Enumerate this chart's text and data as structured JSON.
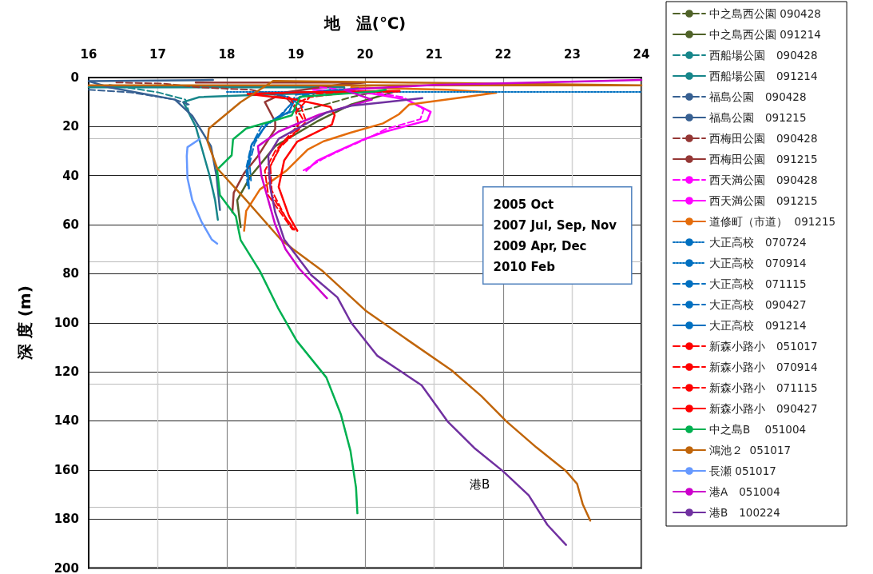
{
  "chart_data": {
    "type": "line",
    "xlabel": "地　温(℃)",
    "ylabel": "深 度 (m)",
    "xlim": [
      16,
      24
    ],
    "xticks": [
      16,
      17,
      18,
      19,
      20,
      21,
      22,
      23,
      24
    ],
    "ylim": [
      200,
      0
    ],
    "yticks": [
      0,
      20,
      40,
      60,
      80,
      100,
      120,
      140,
      160,
      180,
      200
    ],
    "grid": true,
    "legend": "right",
    "marker": "none",
    "annotations": [
      "2005 Oct\n2007 Jul, Sep, Nov\n2009 Apr, Dec\n2010 Feb",
      "港B"
    ],
    "series": [
      {
        "name": "中之島西公園 090428",
        "color": "#4f6228",
        "line_style": "dashed",
        "x": [
          20.3,
          19.8,
          19.3,
          19.0
        ],
        "values": [
          5,
          8,
          12,
          14
        ]
      },
      {
        "name": "中之島西公園 091214",
        "color": "#4f6228",
        "line_style": "solid",
        "x": [
          20.4,
          19.8,
          19.3,
          18.7,
          18.35,
          18.15,
          18.2
        ],
        "values": [
          6,
          11,
          18,
          28,
          40,
          50,
          61
        ]
      },
      {
        "name": "西船場公園　090428",
        "color": "#17868a",
        "line_style": "dashed",
        "x": [
          16.3,
          17.0,
          17.4,
          17.45
        ],
        "values": [
          3,
          6,
          9,
          14
        ]
      },
      {
        "name": "西船場公園　091214",
        "color": "#17868a",
        "line_style": "solid",
        "x": [
          16.0,
          18.5,
          19.7,
          19.7,
          18.5,
          17.6,
          17.37,
          17.55,
          17.65,
          17.75,
          17.83,
          17.87
        ],
        "values": [
          4,
          4,
          4,
          6,
          7,
          8,
          10,
          20,
          30,
          40,
          50,
          58
        ]
      },
      {
        "name": "福島公園　090428",
        "color": "#376092",
        "line_style": "dashed",
        "x": [
          16.0,
          16.6,
          17.25,
          17.45
        ],
        "values": [
          5,
          6,
          9,
          11
        ]
      },
      {
        "name": "福島公園　091215",
        "color": "#376092",
        "line_style": "solid",
        "x": [
          17.8,
          16.0,
          16.3,
          17.25,
          17.5,
          17.77,
          17.85,
          17.9
        ],
        "values": [
          1,
          1.5,
          4,
          9,
          15.6,
          28,
          40,
          54
        ]
      },
      {
        "name": "西梅田公園　090428",
        "color": "#953735",
        "line_style": "dashed",
        "x": [
          16.4,
          17.1,
          17.6,
          18.35,
          18.85,
          18.95,
          19.05
        ],
        "values": [
          2,
          2.5,
          4,
          5,
          8,
          11,
          15
        ]
      },
      {
        "name": "西梅田公園　091215",
        "color": "#953735",
        "line_style": "solid",
        "x": [
          17.55,
          20.0,
          19.6,
          18.85,
          18.55,
          18.7,
          18.7,
          18.45,
          18.25,
          18.1,
          18.08
        ],
        "values": [
          2,
          2,
          3,
          6,
          10,
          18,
          21,
          32,
          39,
          47,
          55
        ]
      },
      {
        "name": "西天満公園　090428",
        "color": "#ff00ff",
        "line_style": "dashed",
        "x": [
          19.35,
          20.1,
          20.55,
          20.85,
          20.8,
          20.3,
          20.1,
          19.7,
          19.4,
          19.1
        ],
        "values": [
          4,
          6,
          8,
          13,
          17,
          21,
          24,
          29,
          33,
          38
        ]
      },
      {
        "name": "西天満公園　091215",
        "color": "#ff00ff",
        "line_style": "solid",
        "x": [
          19.25,
          20.1,
          20.6,
          20.95,
          20.9,
          20.3,
          20.0,
          19.6,
          19.3,
          19.15
        ],
        "values": [
          5,
          6.5,
          9,
          14,
          17.5,
          22,
          25,
          30,
          34,
          38
        ]
      },
      {
        "name": "道修町（市道）  091215",
        "color": "#e46c0a",
        "line_style": "solid",
        "x": [
          19.8,
          21.2,
          21.9,
          21.33,
          20.64,
          20.49,
          20.26,
          19.79,
          19.4,
          19.17,
          18.86,
          18.48,
          18.28,
          18.25
        ],
        "values": [
          4,
          5,
          6.2,
          8.4,
          11,
          15,
          18.7,
          22.5,
          26,
          29.4,
          38,
          45.6,
          54.4,
          62.5
        ]
      },
      {
        "name": "大正高校　070724",
        "color": "#0070c0",
        "line_style": "dotted",
        "x": [
          18.6,
          18.9,
          19.1,
          18.85
        ],
        "values": [
          6,
          8,
          12,
          15
        ]
      },
      {
        "name": "大正高校　070914",
        "color": "#0070c0",
        "line_style": "dotted",
        "x": [
          18.0,
          24.0
        ],
        "values": [
          5.9,
          5.9
        ]
      },
      {
        "name": "大正高校　071115",
        "color": "#0070c0",
        "line_style": "dashed",
        "x": [
          19.5,
          19.0,
          18.92,
          18.75,
          18.55,
          18.4,
          18.33,
          18.35
        ],
        "values": [
          5,
          7,
          11,
          16,
          20,
          27,
          35,
          42
        ]
      },
      {
        "name": "大正高校　090427",
        "color": "#0070c0",
        "line_style": "dashed",
        "x": [
          19.6,
          19.1,
          18.95,
          18.8,
          18.5,
          18.35,
          18.28,
          18.3
        ],
        "values": [
          5,
          7,
          10,
          15,
          20,
          28,
          37,
          44
        ]
      },
      {
        "name": "大正高校　091214",
        "color": "#0070c0",
        "line_style": "solid",
        "x": [
          19.9,
          19.25,
          18.98,
          18.9,
          18.59,
          18.36,
          18.3,
          18.32
        ],
        "values": [
          4.5,
          6,
          9,
          14,
          18.7,
          27.3,
          37,
          45.2
        ]
      },
      {
        "name": "新森小路小　051017",
        "color": "#ff0000",
        "line_style": "dashed",
        "x": [
          18.9,
          19.0,
          19.1,
          18.95,
          18.7,
          18.55,
          18.6,
          18.8,
          18.95
        ],
        "values": [
          8,
          12,
          17,
          22,
          30,
          38,
          48,
          56,
          62
        ]
      },
      {
        "name": "新森小路小　070914",
        "color": "#ff0000",
        "line_style": "dashed",
        "x": [
          20.5,
          19.3,
          19.05,
          19.15,
          18.8,
          18.63,
          18.65,
          18.85,
          18.98
        ],
        "values": [
          5.7,
          6.5,
          10,
          18,
          27,
          36,
          46,
          57,
          62
        ]
      },
      {
        "name": "新森小路小　071115",
        "color": "#ff0000",
        "line_style": "dashed",
        "x": [
          19.8,
          19.2,
          19.0,
          19.05,
          18.75,
          18.6,
          18.65,
          18.85,
          18.98
        ],
        "values": [
          6,
          8,
          14,
          21,
          29,
          38,
          48,
          57,
          62.5
        ]
      },
      {
        "name": "新森小路小　090427",
        "color": "#ff0000",
        "line_style": "solid",
        "x": [
          20.5,
          19.0,
          18.3,
          19.0,
          19.5,
          19.56,
          19.52,
          19.02,
          18.83,
          18.75,
          18.9,
          19.02
        ],
        "values": [
          5.5,
          6,
          6.7,
          9,
          12,
          15.4,
          19.2,
          26.1,
          33.8,
          44.6,
          56.5,
          62.5
        ]
      },
      {
        "name": "中之島B　 051004",
        "color": "#00b050",
        "line_style": "solid",
        "x": [
          20.3,
          20.14,
          19.06,
          18.94,
          18.28,
          18.09,
          18.07,
          17.86,
          17.9,
          18.13,
          18.2,
          18.48,
          18.74,
          19.01,
          19.44,
          19.65,
          19.79,
          19.87,
          19.89
        ],
        "values": [
          5,
          5.7,
          7.8,
          15.4,
          20.8,
          25.2,
          31.7,
          37.5,
          47.9,
          56.6,
          66.3,
          79,
          93.9,
          107.3,
          122.3,
          137.3,
          152.3,
          167.2,
          177.7
        ]
      },
      {
        "name": "鴻池２  051017",
        "color": "#c0650a",
        "line_style": "solid",
        "x": [
          16.0,
          24.0,
          18.67,
          18.2,
          17.74,
          17.72,
          17.86,
          18.28,
          18.78,
          18.96,
          19.39,
          20.02,
          20.56,
          21.25,
          21.68,
          22.05,
          22.48,
          22.91,
          23.07,
          23.15,
          23.26
        ],
        "values": [
          3.2,
          3.2,
          1.4,
          10,
          20.8,
          26,
          37,
          50,
          66,
          70,
          79,
          95.3,
          105.9,
          119.3,
          129.8,
          140.3,
          150.8,
          160.5,
          165.7,
          173.9,
          180.7
        ]
      },
      {
        "name": "長瀬 051017",
        "color": "#6699ff",
        "line_style": "solid",
        "x": [
          17.61,
          17.43,
          17.42,
          17.43,
          17.5,
          17.63,
          17.78,
          17.86
        ],
        "values": [
          25,
          28.4,
          32,
          41,
          50,
          58.6,
          66,
          67.7
        ]
      },
      {
        "name": "港A　051004",
        "color": "#cc00cc",
        "line_style": "solid",
        "x": [
          24.0,
          21.0,
          19.7,
          20.1,
          19.35,
          18.75,
          18.45,
          18.5,
          18.6,
          18.7,
          18.85,
          19.05,
          19.25,
          19.45
        ],
        "values": [
          1,
          3,
          5,
          9,
          15,
          22,
          28,
          40,
          50,
          60,
          70,
          78,
          84,
          90
        ]
      },
      {
        "name": "港B　100224",
        "color": "#7030a0",
        "line_style": "solid",
        "x": [
          20.83,
          20.3,
          19.8,
          19.44,
          18.75,
          18.6,
          18.63,
          18.7,
          18.83,
          19.22,
          19.6,
          19.8,
          20.18,
          20.5,
          20.82,
          21.2,
          21.58,
          22.0,
          22.37,
          22.64,
          22.91
        ],
        "values": [
          8.4,
          10,
          11.5,
          14.3,
          25,
          32,
          45,
          55,
          66,
          80.5,
          89.6,
          100,
          113.5,
          119.5,
          125.5,
          140.4,
          151,
          160.6,
          170.4,
          182.4,
          190.6
        ]
      }
    ]
  }
}
